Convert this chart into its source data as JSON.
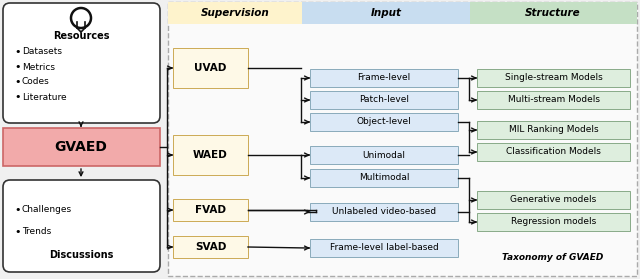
{
  "fig_width": 6.4,
  "fig_height": 2.79,
  "dpi": 100,
  "bg_outer": "#f0f0f0",
  "bg_inner": "#fafafa",
  "sup_color": "#fef9e7",
  "inp_color": "#dce9f7",
  "str_color": "#deeede",
  "gvaed_color": "#f2aaaa",
  "white": "#ffffff",
  "edge_dark": "#222222",
  "edge_med": "#888888",
  "sup_header_color": "#fef3cc",
  "inp_header_color": "#c8ddf0",
  "str_header_color": "#c5e0c5",
  "resources_items": [
    "Datasets",
    "Metrics",
    "Codes",
    "Literature"
  ],
  "discuss_items": [
    "Challenges",
    "Trends"
  ]
}
